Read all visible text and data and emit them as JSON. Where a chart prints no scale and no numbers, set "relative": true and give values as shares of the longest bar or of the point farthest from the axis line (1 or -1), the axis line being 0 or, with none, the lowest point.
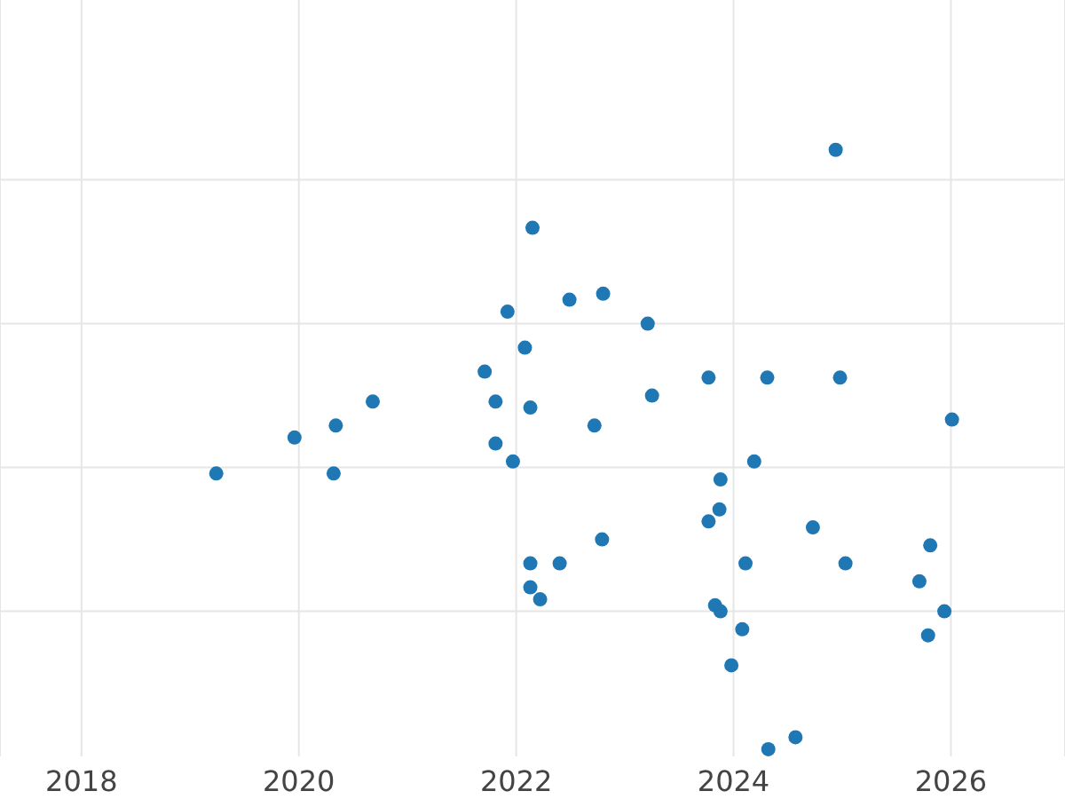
{
  "chart_data": {
    "type": "scatter",
    "relative": true,
    "color": "#1f77b4",
    "marker": "circle",
    "grid": true,
    "x": [
      2024.94,
      2022.15,
      2021.92,
      2022.49,
      2022.8,
      2023.21,
      2022.08,
      2021.71,
      2021.81,
      2022.13,
      2020.68,
      2020.34,
      2019.96,
      2019.24,
      2020.32,
      2021.81,
      2021.97,
      2022.72,
      2023.25,
      2023.77,
      2024.31,
      2024.98,
      2026.01,
      2024.19,
      2023.88,
      2023.87,
      2023.77,
      2024.73,
      2022.79,
      2022.13,
      2022.4,
      2024.11,
      2025.03,
      2025.81,
      2025.71,
      2022.13,
      2022.22,
      2023.83,
      2023.88,
      2024.08,
      2025.94,
      2025.79,
      2023.98,
      2024.57,
      2024.32
    ],
    "values": [
      1,
      0.87,
      0.73,
      0.75,
      0.76,
      0.71,
      0.67,
      0.63,
      0.58,
      0.57,
      0.58,
      0.54,
      0.52,
      0.46,
      0.46,
      0.51,
      0.48,
      0.54,
      0.59,
      0.62,
      0.62,
      0.62,
      0.55,
      0.48,
      0.45,
      0.4,
      0.38,
      0.37,
      0.35,
      0.31,
      0.31,
      0.31,
      0.31,
      0.34,
      0.28,
      0.27,
      0.25,
      0.24,
      0.23,
      0.2,
      0.23,
      0.19,
      0.14,
      0.02,
      0
    ],
    "xlim": [
      2017.25,
      2027.05
    ],
    "xticks": [
      2018,
      2020,
      2022,
      2024,
      2026
    ]
  }
}
